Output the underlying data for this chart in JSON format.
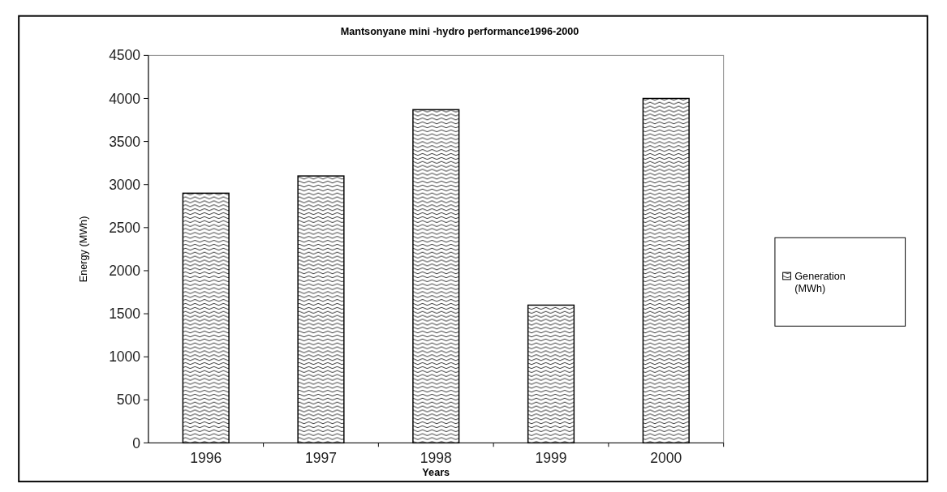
{
  "chart_data": {
    "type": "bar",
    "title": "Mantsonyane mini -hydro performance1996-2000",
    "xlabel": "Years",
    "ylabel": "Energy (MWh)",
    "categories": [
      "1996",
      "1997",
      "1998",
      "1999",
      "2000"
    ],
    "series": [
      {
        "name": "Generation (MWh)",
        "color": "#000000",
        "values": [
          2900,
          3100,
          3870,
          1600,
          4000
        ]
      }
    ],
    "ylim": [
      0,
      4500
    ],
    "yticks": [
      0,
      500,
      1000,
      1500,
      2000,
      2500,
      3000,
      3500,
      4000,
      4500
    ],
    "grid": false,
    "legend": "right"
  }
}
